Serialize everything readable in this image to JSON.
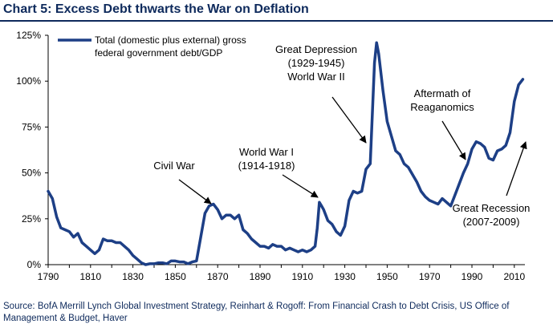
{
  "header": {
    "title": "Chart 5: Excess Debt thwarts the War on Deflation"
  },
  "source_text": "Source: BofA Merrill Lynch Global Investment Strategy, Reinhart & Rogoff: From Financial Crash to Debt Crisis, US Office of Management & Budget, Haver",
  "colors": {
    "line": "#1d3f86",
    "title": "#0e2a5c",
    "axis": "#000000"
  },
  "chart_data": {
    "type": "line",
    "title": "Chart 5: Excess Debt thwarts the War on Deflation",
    "xlabel": "",
    "ylabel": "",
    "xlim": [
      1790,
      2015
    ],
    "ylim": [
      0,
      125
    ],
    "x_ticks": [
      "1790",
      "1810",
      "1830",
      "1850",
      "1870",
      "1890",
      "1910",
      "1930",
      "1950",
      "1970",
      "1990",
      "2010"
    ],
    "y_ticks": [
      "0%",
      "25%",
      "50%",
      "75%",
      "100%",
      "125%"
    ],
    "y_tick_values": [
      0,
      25,
      50,
      75,
      100,
      125
    ],
    "grid": false,
    "legend_position": "top-left",
    "series": [
      {
        "name": "Total (domestic plus external) gross federal government debt/GDP",
        "x": [
          1790,
          1792,
          1794,
          1796,
          1798,
          1800,
          1802,
          1804,
          1806,
          1808,
          1810,
          1812,
          1814,
          1816,
          1818,
          1820,
          1822,
          1824,
          1826,
          1828,
          1830,
          1832,
          1834,
          1836,
          1838,
          1840,
          1842,
          1844,
          1846,
          1848,
          1850,
          1852,
          1854,
          1856,
          1858,
          1860,
          1862,
          1864,
          1866,
          1868,
          1870,
          1872,
          1874,
          1876,
          1878,
          1880,
          1882,
          1884,
          1886,
          1888,
          1890,
          1892,
          1894,
          1896,
          1898,
          1900,
          1902,
          1904,
          1906,
          1908,
          1910,
          1912,
          1914,
          1916,
          1917,
          1918,
          1919,
          1920,
          1922,
          1924,
          1926,
          1928,
          1930,
          1932,
          1934,
          1936,
          1938,
          1940,
          1942,
          1944,
          1945,
          1946,
          1948,
          1950,
          1952,
          1954,
          1956,
          1958,
          1960,
          1962,
          1964,
          1966,
          1968,
          1970,
          1972,
          1974,
          1976,
          1978,
          1980,
          1982,
          1984,
          1986,
          1988,
          1990,
          1992,
          1994,
          1996,
          1998,
          2000,
          2002,
          2004,
          2006,
          2008,
          2010,
          2012,
          2014
        ],
        "values": [
          40,
          36,
          26,
          20,
          19,
          18,
          15,
          17,
          12,
          10,
          8,
          6,
          8,
          14,
          13,
          13,
          12,
          12,
          10,
          8,
          5,
          3,
          1,
          0,
          0.5,
          0.5,
          1,
          1,
          0.5,
          2,
          2,
          1.5,
          1.5,
          0.5,
          1.5,
          2,
          15,
          28,
          32,
          33,
          30,
          25,
          27,
          27,
          25,
          27,
          19,
          17,
          14,
          12,
          10,
          10,
          9,
          11,
          10,
          10,
          8,
          9,
          8,
          7,
          8,
          7,
          8,
          10,
          20,
          34,
          32,
          30,
          24,
          22,
          18,
          16,
          21,
          35,
          40,
          39,
          40,
          52,
          55,
          110,
          121,
          115,
          95,
          78,
          70,
          62,
          60,
          55,
          53,
          49,
          45,
          40,
          37,
          35,
          34,
          33,
          36,
          34,
          32,
          38,
          44,
          50,
          55,
          63,
          67,
          66,
          64,
          58,
          57,
          62,
          63,
          65,
          72,
          89,
          98,
          101
        ]
      }
    ],
    "annotations": [
      {
        "label": [
          "Civil War"
        ]
      },
      {
        "label": [
          "World War I",
          "(1914-1918)"
        ]
      },
      {
        "label": [
          "Great Depression",
          "(1929-1945)",
          "World War II"
        ]
      },
      {
        "label": [
          "Aftermath of",
          "Reaganomics"
        ]
      },
      {
        "label": [
          "Great Recession",
          "(2007-2009)"
        ]
      }
    ]
  }
}
